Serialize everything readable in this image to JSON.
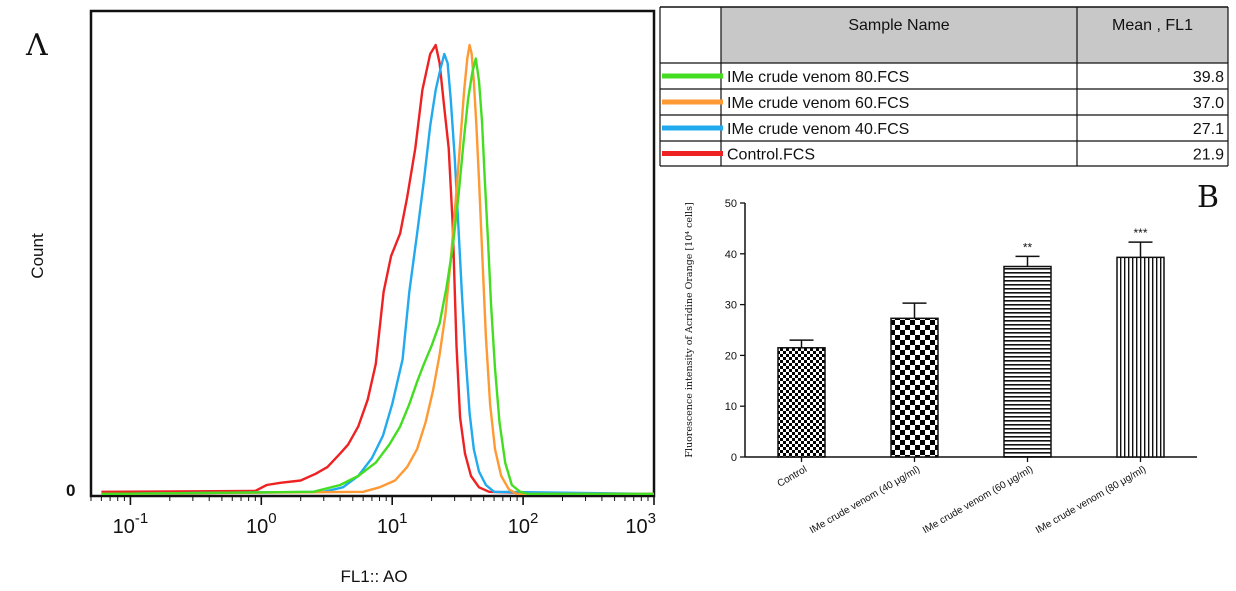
{
  "chart_data": [
    {
      "panel_letter": "Λ",
      "type": "line",
      "xlabel": "FL1:: AO",
      "ylabel": "Count",
      "x_scale": "log",
      "xlim": [
        0.05,
        1000
      ],
      "y_zero_label": "0",
      "x_ticks": [
        {
          "base": "10",
          "exp": "-1",
          "value": 0.1
        },
        {
          "base": "10",
          "exp": "0",
          "value": 1
        },
        {
          "base": "10",
          "exp": "1",
          "value": 10
        },
        {
          "base": "10",
          "exp": "2",
          "value": 100
        },
        {
          "base": "10",
          "exp": "3",
          "value": 1000
        }
      ],
      "series": [
        {
          "name": "Control.FCS",
          "color": "#ee2222",
          "points": [
            [
              0.06,
              0.5
            ],
            [
              0.3,
              0.6
            ],
            [
              0.9,
              0.7
            ],
            [
              1.1,
              2
            ],
            [
              1.4,
              2.5
            ],
            [
              2.0,
              3
            ],
            [
              2.6,
              4.5
            ],
            [
              3.2,
              6
            ],
            [
              4.0,
              9
            ],
            [
              4.6,
              11
            ],
            [
              5.5,
              15
            ],
            [
              6.5,
              21
            ],
            [
              7.5,
              29
            ],
            [
              8.6,
              45
            ],
            [
              9.8,
              53
            ],
            [
              11.5,
              58
            ],
            [
              13.0,
              66
            ],
            [
              15.0,
              77
            ],
            [
              17.0,
              90
            ],
            [
              19.5,
              98
            ],
            [
              21.5,
              100
            ],
            [
              23.0,
              96
            ],
            [
              25.0,
              86
            ],
            [
              27.0,
              77
            ],
            [
              29.0,
              60
            ],
            [
              31.0,
              33
            ],
            [
              33.0,
              17
            ],
            [
              36.0,
              9
            ],
            [
              40.0,
              4
            ],
            [
              46.0,
              1.5
            ],
            [
              55.0,
              0.5
            ],
            [
              200,
              0
            ],
            [
              1000,
              0
            ]
          ]
        },
        {
          "name": "IMe crude venom 40.FCS",
          "color": "#22aaee",
          "points": [
            [
              0.06,
              0
            ],
            [
              3.0,
              0.5
            ],
            [
              4.2,
              1.5
            ],
            [
              5.5,
              4
            ],
            [
              7.0,
              8
            ],
            [
              8.5,
              13
            ],
            [
              10.0,
              20
            ],
            [
              12.0,
              30
            ],
            [
              13.5,
              45
            ],
            [
              15.5,
              58
            ],
            [
              17.5,
              70
            ],
            [
              19.5,
              82
            ],
            [
              21.5,
              90
            ],
            [
              23.5,
              95
            ],
            [
              25.0,
              98
            ],
            [
              26.5,
              96
            ],
            [
              28.0,
              88
            ],
            [
              30.0,
              75
            ],
            [
              32.0,
              60
            ],
            [
              34.0,
              45
            ],
            [
              36.5,
              30
            ],
            [
              39.0,
              18
            ],
            [
              42.0,
              10
            ],
            [
              46.0,
              5
            ],
            [
              52.0,
              2
            ],
            [
              60.0,
              0.5
            ],
            [
              1000,
              0
            ]
          ]
        },
        {
          "name": "IMe crude venom 60.FCS",
          "color": "#ff9933",
          "points": [
            [
              0.06,
              0
            ],
            [
              6.0,
              0.5
            ],
            [
              8.0,
              1.5
            ],
            [
              10.5,
              3
            ],
            [
              13.0,
              6
            ],
            [
              15.5,
              10
            ],
            [
              18.0,
              16
            ],
            [
              20.5,
              23
            ],
            [
              23.0,
              31
            ],
            [
              25.5,
              40
            ],
            [
              28.0,
              52
            ],
            [
              30.5,
              65
            ],
            [
              33.0,
              78
            ],
            [
              35.5,
              90
            ],
            [
              37.5,
              97
            ],
            [
              39.0,
              100
            ],
            [
              40.5,
              98
            ],
            [
              42.0,
              92
            ],
            [
              44.0,
              82
            ],
            [
              46.0,
              70
            ],
            [
              49.0,
              52
            ],
            [
              52.0,
              35
            ],
            [
              56.0,
              20
            ],
            [
              61.0,
              10
            ],
            [
              68.0,
              4
            ],
            [
              78.0,
              1
            ],
            [
              90.0,
              0
            ],
            [
              1000,
              0
            ]
          ]
        },
        {
          "name": "IMe crude venom 80.FCS",
          "color": "#44dd22",
          "points": [
            [
              0.06,
              0
            ],
            [
              2.5,
              0.5
            ],
            [
              4.0,
              2
            ],
            [
              5.5,
              4
            ],
            [
              7.5,
              7
            ],
            [
              9.5,
              11
            ],
            [
              11.5,
              15
            ],
            [
              13.5,
              20
            ],
            [
              15.5,
              25
            ],
            [
              17.5,
              29
            ],
            [
              20.0,
              33
            ],
            [
              23.0,
              38
            ],
            [
              26.0,
              46
            ],
            [
              29.0,
              55
            ],
            [
              32.0,
              66
            ],
            [
              35.0,
              78
            ],
            [
              38.0,
              88
            ],
            [
              41.0,
              94
            ],
            [
              43.5,
              97
            ],
            [
              46.0,
              92
            ],
            [
              48.5,
              83
            ],
            [
              51.0,
              70
            ],
            [
              54.0,
              56
            ],
            [
              57.0,
              42
            ],
            [
              61.0,
              28
            ],
            [
              66.0,
              16
            ],
            [
              73.0,
              7
            ],
            [
              82.0,
              2
            ],
            [
              95.0,
              0.5
            ],
            [
              110.0,
              0
            ],
            [
              1000,
              0
            ]
          ]
        }
      ],
      "legend_table": {
        "headers": [
          "Sample Name",
          "Mean , FL1"
        ],
        "rows": [
          {
            "name": "IMe crude venom 80.FCS",
            "mean": "39.8",
            "color": "#44dd22"
          },
          {
            "name": "IMe crude venom 60.FCS",
            "mean": "37.0",
            "color": "#ff9933"
          },
          {
            "name": "IMe crude venom 40.FCS",
            "mean": "27.1",
            "color": "#22aaee"
          },
          {
            "name": "Control.FCS",
            "mean": "21.9",
            "color": "#ee2222"
          }
        ]
      }
    },
    {
      "panel_letter": "B",
      "type": "bar",
      "ylabel": "Fluorescence intensity of Acridine Orange [10⁴ cells]",
      "ylim": [
        0,
        50
      ],
      "y_ticks": [
        0,
        10,
        20,
        30,
        40,
        50
      ],
      "categories": [
        "Control",
        "IMe crude venom (40 μg/ml)",
        "IMe crude venom (60 μg/ml)",
        "IMe crude venom (80 μg/ml)"
      ],
      "values": [
        21.5,
        27.3,
        37.5,
        39.3
      ],
      "errors": [
        1.5,
        3.0,
        2.0,
        3.0
      ],
      "significance": [
        "",
        "",
        "**",
        "***"
      ],
      "patterns": [
        "checker-fine",
        "checker-coarse",
        "horizontal-lines",
        "vertical-lines"
      ]
    }
  ]
}
